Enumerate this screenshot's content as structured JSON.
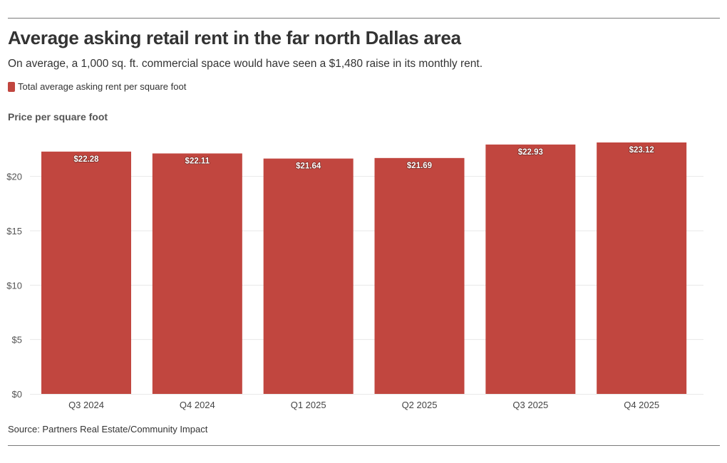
{
  "header": {
    "title": "Average asking retail rent in the far north Dallas area",
    "subtitle": "On average, a 1,000 sq. ft. commercial space would have seen a $1,480 raise in its monthly rent.",
    "legend_label": "Total average asking rent per square foot"
  },
  "axis": {
    "ylabel": "Price per square foot"
  },
  "footer": {
    "source": "Source: Partners Real Estate/Community Impact"
  },
  "colors": {
    "bar": "#c1463f",
    "grid": "#e8e8e8"
  },
  "chart_data": {
    "type": "bar",
    "title": "Average asking retail rent in the far north Dallas area",
    "xlabel": "",
    "ylabel": "Price per square foot",
    "categories": [
      "Q3 2024",
      "Q4 2024",
      "Q1 2025",
      "Q2 2025",
      "Q3 2025",
      "Q4 2025"
    ],
    "series": [
      {
        "name": "Total average asking rent per square foot",
        "values": [
          22.28,
          22.11,
          21.64,
          21.69,
          22.93,
          23.12
        ],
        "labels": [
          "$22.28",
          "$22.11",
          "$21.64",
          "$21.69",
          "$22.93",
          "$23.12"
        ]
      }
    ],
    "ylim": [
      0,
      23.12
    ],
    "yticks": [
      0,
      5,
      10,
      15,
      20
    ],
    "ytick_labels": [
      "$0",
      "$5",
      "$10",
      "$15",
      "$20"
    ],
    "grid": true,
    "legend": "top-left"
  }
}
